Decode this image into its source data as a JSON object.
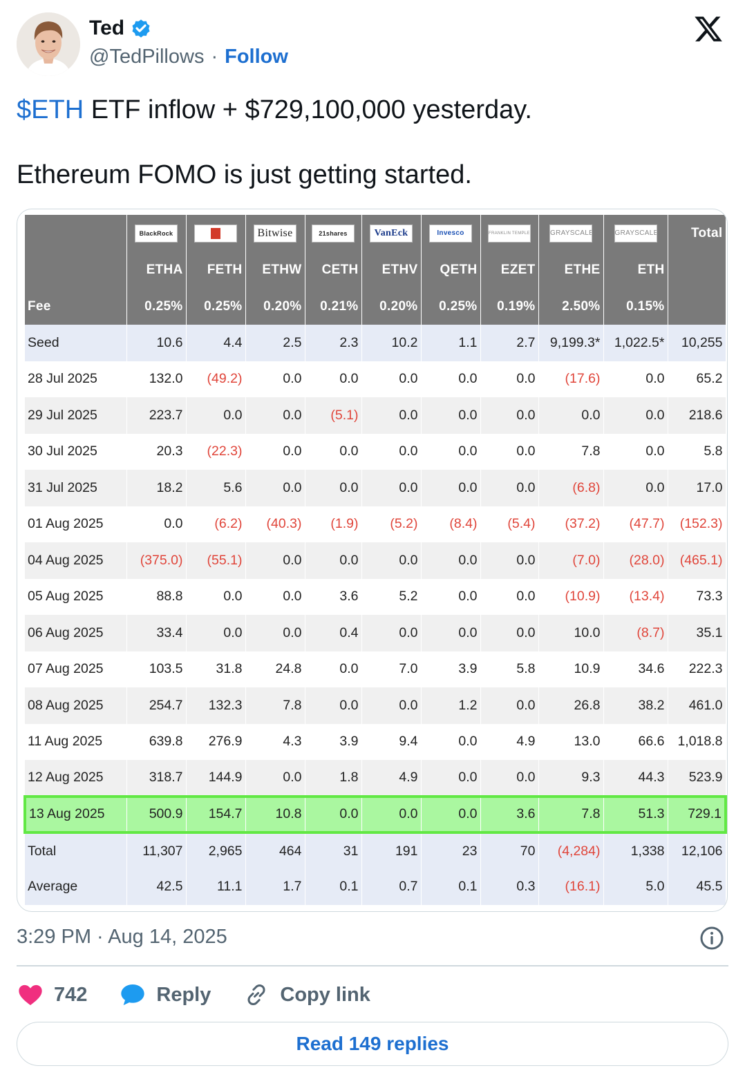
{
  "author": {
    "name": "Ted",
    "handle": "@TedPillows",
    "separator": "·",
    "follow_label": "Follow"
  },
  "tweet": {
    "cashtag": "$ETH",
    "line1_rest": " ETF inflow + $729,100,000 yesterday.",
    "line2": "Ethereum FOMO is just getting started."
  },
  "table": {
    "issuer_logos": [
      "BlackRock",
      "Fidelity",
      "Bitwise",
      "21shares",
      "VanEck",
      "Invesco",
      "FRANKLIN TEMPLETON",
      "GRAYSCALE",
      "GRAYSCALE"
    ],
    "total_header": "Total",
    "tickers": [
      "ETHA",
      "FETH",
      "ETHW",
      "CETH",
      "ETHV",
      "QETH",
      "EZET",
      "ETHE",
      "ETH"
    ],
    "fee_label": "Fee",
    "fees": [
      "0.25%",
      "0.25%",
      "0.20%",
      "0.21%",
      "0.20%",
      "0.25%",
      "0.19%",
      "2.50%",
      "0.15%"
    ],
    "rows": [
      {
        "label": "Seed",
        "cells": [
          "10.6",
          "4.4",
          "2.5",
          "2.3",
          "10.2",
          "1.1",
          "2.7",
          "9,199.3*",
          "1,022.5*",
          "10,255"
        ],
        "type": "seed"
      },
      {
        "label": "28 Jul 2025",
        "cells": [
          "132.0",
          "(49.2)",
          "0.0",
          "0.0",
          "0.0",
          "0.0",
          "0.0",
          "(17.6)",
          "0.0",
          "65.2"
        ],
        "type": "odd"
      },
      {
        "label": "29 Jul 2025",
        "cells": [
          "223.7",
          "0.0",
          "0.0",
          "(5.1)",
          "0.0",
          "0.0",
          "0.0",
          "0.0",
          "0.0",
          "218.6"
        ],
        "type": "even"
      },
      {
        "label": "30 Jul 2025",
        "cells": [
          "20.3",
          "(22.3)",
          "0.0",
          "0.0",
          "0.0",
          "0.0",
          "0.0",
          "7.8",
          "0.0",
          "5.8"
        ],
        "type": "odd"
      },
      {
        "label": "31 Jul 2025",
        "cells": [
          "18.2",
          "5.6",
          "0.0",
          "0.0",
          "0.0",
          "0.0",
          "0.0",
          "(6.8)",
          "0.0",
          "17.0"
        ],
        "type": "even"
      },
      {
        "label": "01 Aug 2025",
        "cells": [
          "0.0",
          "(6.2)",
          "(40.3)",
          "(1.9)",
          "(5.2)",
          "(8.4)",
          "(5.4)",
          "(37.2)",
          "(47.7)",
          "(152.3)"
        ],
        "type": "odd"
      },
      {
        "label": "04 Aug 2025",
        "cells": [
          "(375.0)",
          "(55.1)",
          "0.0",
          "0.0",
          "0.0",
          "0.0",
          "0.0",
          "(7.0)",
          "(28.0)",
          "(465.1)"
        ],
        "type": "even"
      },
      {
        "label": "05 Aug 2025",
        "cells": [
          "88.8",
          "0.0",
          "0.0",
          "3.6",
          "5.2",
          "0.0",
          "0.0",
          "(10.9)",
          "(13.4)",
          "73.3"
        ],
        "type": "odd"
      },
      {
        "label": "06 Aug 2025",
        "cells": [
          "33.4",
          "0.0",
          "0.0",
          "0.4",
          "0.0",
          "0.0",
          "0.0",
          "10.0",
          "(8.7)",
          "35.1"
        ],
        "type": "even"
      },
      {
        "label": "07 Aug 2025",
        "cells": [
          "103.5",
          "31.8",
          "24.8",
          "0.0",
          "7.0",
          "3.9",
          "5.8",
          "10.9",
          "34.6",
          "222.3"
        ],
        "type": "odd"
      },
      {
        "label": "08 Aug 2025",
        "cells": [
          "254.7",
          "132.3",
          "7.8",
          "0.0",
          "0.0",
          "1.2",
          "0.0",
          "26.8",
          "38.2",
          "461.0"
        ],
        "type": "even"
      },
      {
        "label": "11 Aug 2025",
        "cells": [
          "639.8",
          "276.9",
          "4.3",
          "3.9",
          "9.4",
          "0.0",
          "4.9",
          "13.0",
          "66.6",
          "1,018.8"
        ],
        "type": "odd"
      },
      {
        "label": "12 Aug 2025",
        "cells": [
          "318.7",
          "144.9",
          "0.0",
          "1.8",
          "4.9",
          "0.0",
          "0.0",
          "9.3",
          "44.3",
          "523.9"
        ],
        "type": "even"
      },
      {
        "label": "13 Aug 2025",
        "cells": [
          "500.9",
          "154.7",
          "10.8",
          "0.0",
          "0.0",
          "0.0",
          "3.6",
          "7.8",
          "51.3",
          "729.1"
        ],
        "type": "highlight"
      },
      {
        "label": "Total",
        "cells": [
          "11,307",
          "2,965",
          "464",
          "31",
          "191",
          "23",
          "70",
          "(4,284)",
          "1,338",
          "12,106"
        ],
        "type": "summary"
      },
      {
        "label": "Average",
        "cells": [
          "42.5",
          "11.1",
          "1.7",
          "0.1",
          "0.7",
          "0.1",
          "0.3",
          "(16.1)",
          "5.0",
          "45.5"
        ],
        "type": "summary"
      }
    ],
    "colors": {
      "header_bg": "#7a7a7a",
      "negative": "#e0453a",
      "highlight": "#aaf7a0",
      "highlight_border": "#61e844",
      "summary_bg": "#e6ebf6"
    }
  },
  "meta": {
    "timestamp": "3:29 PM · Aug 14, 2025"
  },
  "actions": {
    "likes": "742",
    "reply_label": "Reply",
    "copy_label": "Copy link",
    "read_replies": "Read 149 replies"
  },
  "icons": [
    "verified-badge-icon",
    "x-logo-icon",
    "info-icon",
    "heart-icon",
    "reply-bubble-icon",
    "link-icon"
  ],
  "brand_colors": {
    "link_blue": "#1d6fd0",
    "heart_pink": "#f02f7f",
    "bubble_blue": "#1d9bf0",
    "muted": "#536471"
  }
}
